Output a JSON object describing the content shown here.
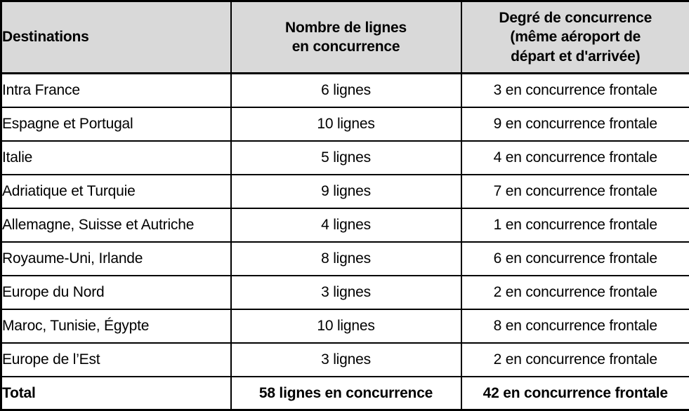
{
  "colors": {
    "header_bg": "#d9d9d9",
    "border": "#000000",
    "text": "#000000",
    "body_bg": "#ffffff"
  },
  "table": {
    "header": {
      "destinations": "Destinations",
      "lines": "Nombre de lignes\nen concurrence",
      "degree": "Degré de concurrence\n(même aéroport de\ndépart et d'arrivée)"
    },
    "rows": [
      {
        "destination": "Intra France",
        "lines": "6 lignes",
        "degree": "3 en concurrence frontale"
      },
      {
        "destination": "Espagne et Portugal",
        "lines": "10 lignes",
        "degree": "9 en concurrence frontale"
      },
      {
        "destination": "Italie",
        "lines": "5 lignes",
        "degree": "4 en concurrence frontale"
      },
      {
        "destination": "Adriatique et Turquie",
        "lines": "9 lignes",
        "degree": "7 en concurrence frontale"
      },
      {
        "destination": "Allemagne, Suisse et Autriche",
        "lines": "4 lignes",
        "degree": "1 en concurrence frontale"
      },
      {
        "destination": "Royaume-Uni, Irlande",
        "lines": "8 lignes",
        "degree": "6 en concurrence frontale"
      },
      {
        "destination": "Europe du Nord",
        "lines": "3 lignes",
        "degree": "2 en concurrence frontale"
      },
      {
        "destination": "Maroc, Tunisie, Égypte",
        "lines": "10 lignes",
        "degree": "8 en concurrence frontale"
      },
      {
        "destination": "Europe de l’Est",
        "lines": "3 lignes",
        "degree": "2 en concurrence frontale"
      }
    ],
    "total": {
      "destination": "Total",
      "lines": "58 lignes en concurrence",
      "degree": "42 en concurrence frontale"
    }
  }
}
